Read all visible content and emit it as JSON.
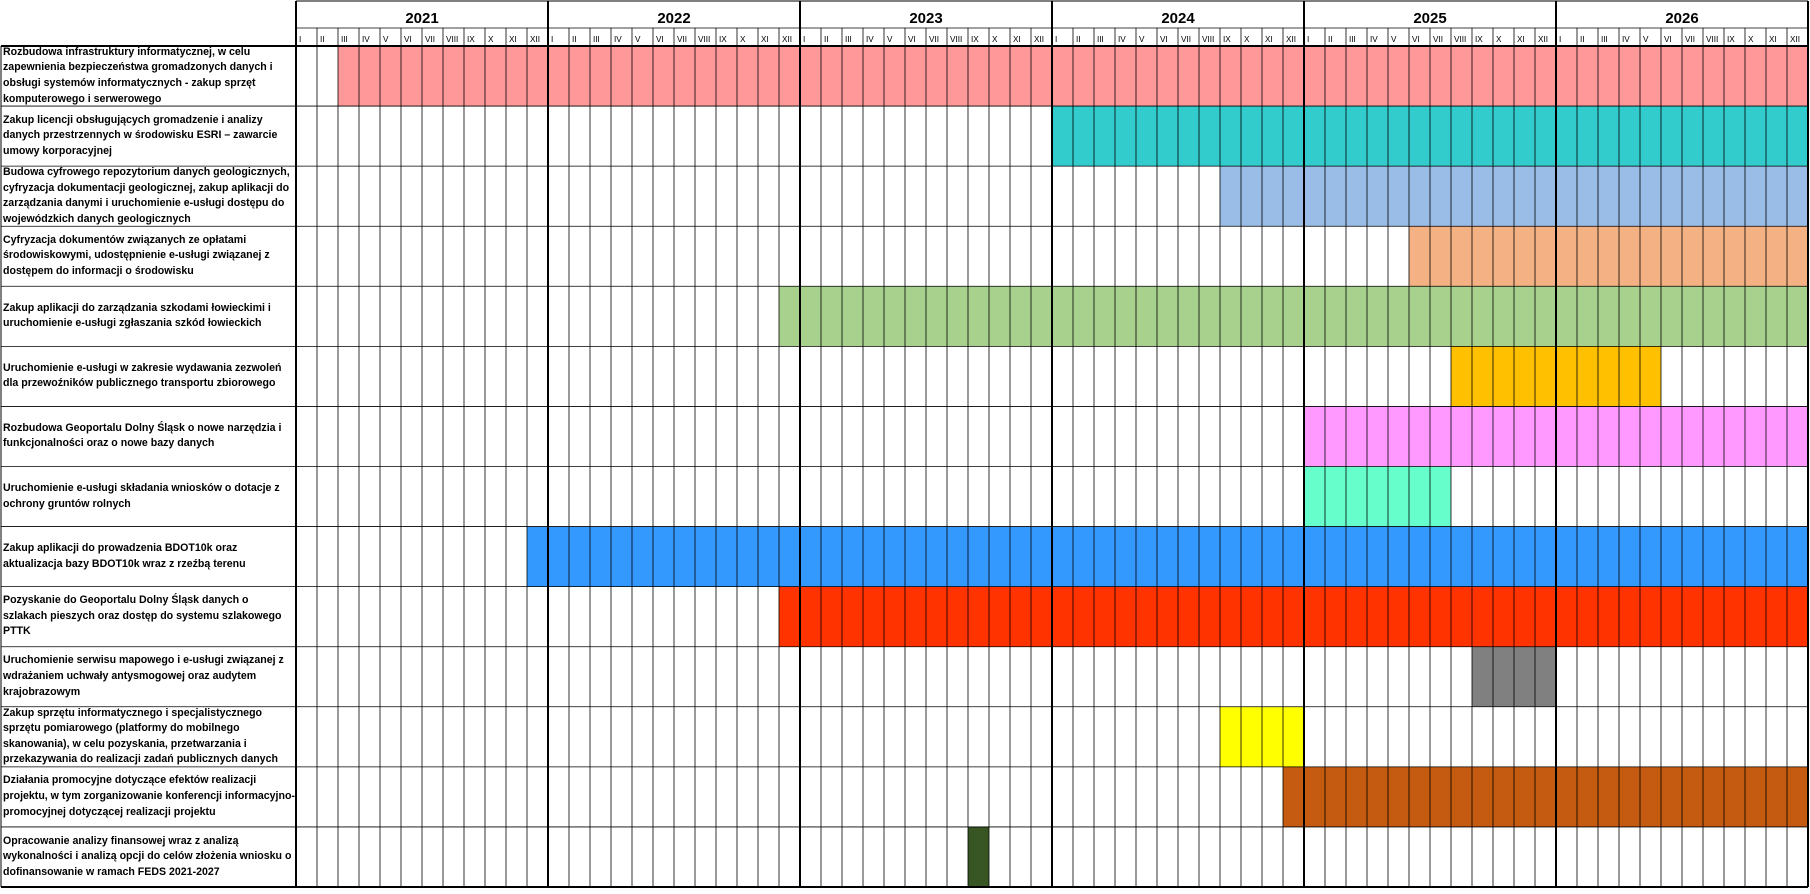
{
  "chart_data": {
    "type": "gantt",
    "title": "",
    "years": [
      "2021",
      "2022",
      "2023",
      "2024",
      "2025",
      "2026"
    ],
    "months": [
      "I",
      "II",
      "III",
      "IV",
      "V",
      "VI",
      "VII",
      "VIII",
      "IX",
      "X",
      "XI",
      "XII"
    ],
    "grid": true,
    "tasks": [
      {
        "label": "Rozbudowa infrastruktury informatycznej, w celu zapewnienia bezpieczeństwa gromadzonych danych i obsługi systemów informatycznych - zakup sprzęt komputerowego i serwerowego",
        "start": "2021-03",
        "end": "2026-12",
        "color": "#ff9999"
      },
      {
        "label": "Zakup licencji obsługujących gromadzenie i analizy danych przestrzennych w środowisku ESRI – zawarcie umowy korporacyjnej",
        "start": "2024-01",
        "end": "2026-12",
        "color": "#33cccc"
      },
      {
        "label": "Budowa cyfrowego repozytorium danych geologicznych, cyfryzacja dokumentacji geologicznej, zakup aplikacji do zarządzania danymi i uruchomienie e-usługi dostępu do wojewódzkich danych geologicznych",
        "start": "2024-09",
        "end": "2026-12",
        "color": "#99bde6"
      },
      {
        "label": "Cyfryzacja dokumentów związanych ze opłatami środowiskowymi, udostępnienie e-usługi związanej z dostępem do informacji o środowisku",
        "start": "2025-06",
        "end": "2026-12",
        "color": "#f4b183"
      },
      {
        "label": "Zakup aplikacji do zarządzania szkodami łowieckimi i uruchomienie e-usługi zgłaszania szkód łowieckich",
        "start": "2022-12",
        "end": "2026-12",
        "color": "#a9d18e"
      },
      {
        "label": "Uruchomienie e-usługi w zakresie wydawania zezwoleń dla przewoźników publicznego transportu zbiorowego",
        "start": "2025-08",
        "end": "2026-05",
        "color": "#ffc000"
      },
      {
        "label": "Rozbudowa Geoportalu Dolny Śląsk o nowe narzędzia i funkcjonalności oraz o nowe bazy danych",
        "start": "2025-01",
        "end": "2026-12",
        "color": "#ff99ff"
      },
      {
        "label": "Uruchomienie e-usługi składania wniosków o dotacje z ochrony gruntów rolnych",
        "start": "2025-01",
        "end": "2025-07",
        "color": "#66ffcc"
      },
      {
        "label": "Zakup aplikacji do prowadzenia BDOT10k oraz aktualizacja bazy BDOT10k wraz z rzeźbą terenu",
        "start": "2021-12",
        "end": "2026-12",
        "color": "#3399ff"
      },
      {
        "label": "Pozyskanie do Geoportalu Dolny Śląsk  danych o szlakach pieszych oraz dostęp do systemu szlakowego PTTK",
        "start": "2022-12",
        "end": "2026-12",
        "color": "#ff3300"
      },
      {
        "label": "Uruchomienie serwisu mapowego i e-usługi związanej z wdrażaniem uchwały antysmogowej oraz audytem krajobrazowym",
        "start": "2025-09",
        "end": "2025-12",
        "color": "#808080"
      },
      {
        "label": "Zakup sprzętu informatycznego i specjalistycznego sprzętu pomiarowego (platformy do mobilnego skanowania), w celu pozyskania, przetwarzania i przekazywania do realizacji zadań publicznych danych",
        "start": "2024-09",
        "end": "2024-12",
        "color": "#ffff00"
      },
      {
        "label": "Działania promocyjne dotyczące efektów realizacji projektu, w tym zorganizowanie konferencji informacyjno-promocyjnej dotyczącej realizacji projektu",
        "start": "2024-12",
        "end": "2026-12",
        "color": "#c55a11"
      },
      {
        "label": "Opracowanie analizy finansowej wraz z analizą wykonalności i analizą opcji do celów złożenia wniosku o dofinansowanie w ramach FEDS 2021-2027",
        "start": "2023-09",
        "end": "2023-09",
        "color": "#375623"
      }
    ]
  }
}
